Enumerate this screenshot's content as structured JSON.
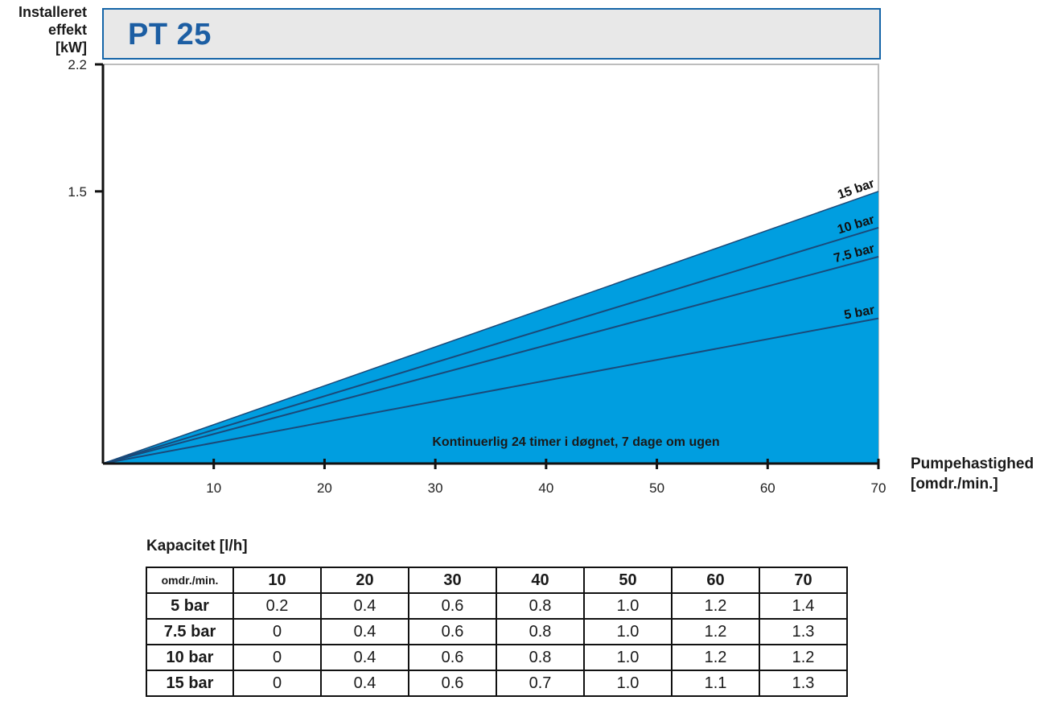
{
  "header": {
    "title": "PT 25"
  },
  "y_axis_label": [
    "Installeret",
    "effekt",
    "[kW]"
  ],
  "x_axis_label": [
    "Pumpehastighed",
    "[omdr./min.]"
  ],
  "annotation": "Kontinuerlig 24 timer i døgnet, 7 dage om ugen",
  "colors": {
    "fill": "#009ee0",
    "line": "#1a4a7a",
    "title": "#1c5ea3",
    "border": "#1565a8"
  },
  "chart_data": {
    "type": "area",
    "xlabel": "Pumpehastighed [omdr./min.]",
    "ylabel": "Installeret effekt [kW]",
    "xlim": [
      0,
      70
    ],
    "ylim": [
      0,
      2.2
    ],
    "x_ticks": [
      "10",
      "20",
      "30",
      "40",
      "50",
      "60",
      "70"
    ],
    "y_ticks": [
      "1.5",
      "2.2"
    ],
    "series": [
      {
        "name": "15 bar",
        "x": [
          0,
          70
        ],
        "values": [
          0,
          1.5
        ]
      },
      {
        "name": "10 bar",
        "x": [
          0,
          70
        ],
        "values": [
          0,
          1.3
        ]
      },
      {
        "name": "7.5 bar",
        "x": [
          0,
          70
        ],
        "values": [
          0,
          1.14
        ]
      },
      {
        "name": "5 bar",
        "x": [
          0,
          70
        ],
        "values": [
          0,
          0.8
        ]
      }
    ]
  },
  "capacity": {
    "title": "Kapacitet [l/h]",
    "corner": "omdr./min.",
    "columns": [
      "10",
      "20",
      "30",
      "40",
      "50",
      "60",
      "70"
    ],
    "rows": [
      {
        "label": "5 bar",
        "values": [
          "0.2",
          "0.4",
          "0.6",
          "0.8",
          "1.0",
          "1.2",
          "1.4"
        ]
      },
      {
        "label": "7.5 bar",
        "values": [
          "0",
          "0.4",
          "0.6",
          "0.8",
          "1.0",
          "1.2",
          "1.3"
        ]
      },
      {
        "label": "10 bar",
        "values": [
          "0",
          "0.4",
          "0.6",
          "0.8",
          "1.0",
          "1.2",
          "1.2"
        ]
      },
      {
        "label": "15 bar",
        "values": [
          "0",
          "0.4",
          "0.6",
          "0.7",
          "1.0",
          "1.1",
          "1.3"
        ]
      }
    ]
  }
}
